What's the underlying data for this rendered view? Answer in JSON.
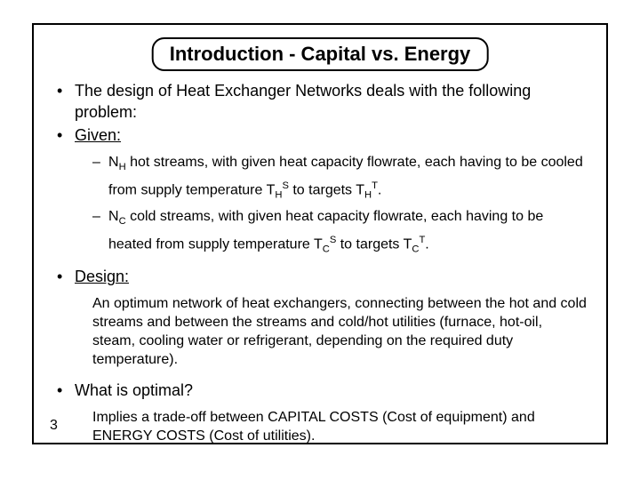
{
  "title": "Introduction - Capital vs. Energy",
  "bullets": {
    "intro": "The design of Heat Exchanger Networks deals with the following problem:",
    "given_label": "Given:",
    "given_sub1_a": "N",
    "given_sub1_b": "H",
    "given_sub1_c": " hot streams, with given heat capacity flowrate, each having to be cooled from supply temperature T",
    "given_sub1_d": "H",
    "given_sub1_e": "S",
    "given_sub1_f": " to targets T",
    "given_sub1_g": "H",
    "given_sub1_h": "T",
    "given_sub1_i": ".",
    "given_sub2_a": "N",
    "given_sub2_b": "C",
    "given_sub2_c": " cold streams, with given heat capacity flowrate, each having to be heated from supply temperature T",
    "given_sub2_d": "C",
    "given_sub2_e": "S",
    "given_sub2_f": " to targets T",
    "given_sub2_g": "C",
    "given_sub2_h": "T",
    "given_sub2_i": ".",
    "design_label": "Design:",
    "design_body": "An optimum network of heat exchangers, connecting between the hot and cold streams and between the streams and cold/hot utilities (furnace, hot-oil, steam, cooling water or refrigerant, depending on the required duty temperature).",
    "optimal_label": "What is optimal?",
    "optimal_body": "Implies a trade-off between CAPITAL COSTS (Cost of equipment) and ENERGY COSTS (Cost of utilities)."
  },
  "page_number": "3",
  "style": {
    "font_family": "Comic Sans MS",
    "border_color": "#000000",
    "background": "#ffffff",
    "title_fontsize": 22,
    "l1_fontsize": 18,
    "l2_fontsize": 16
  }
}
